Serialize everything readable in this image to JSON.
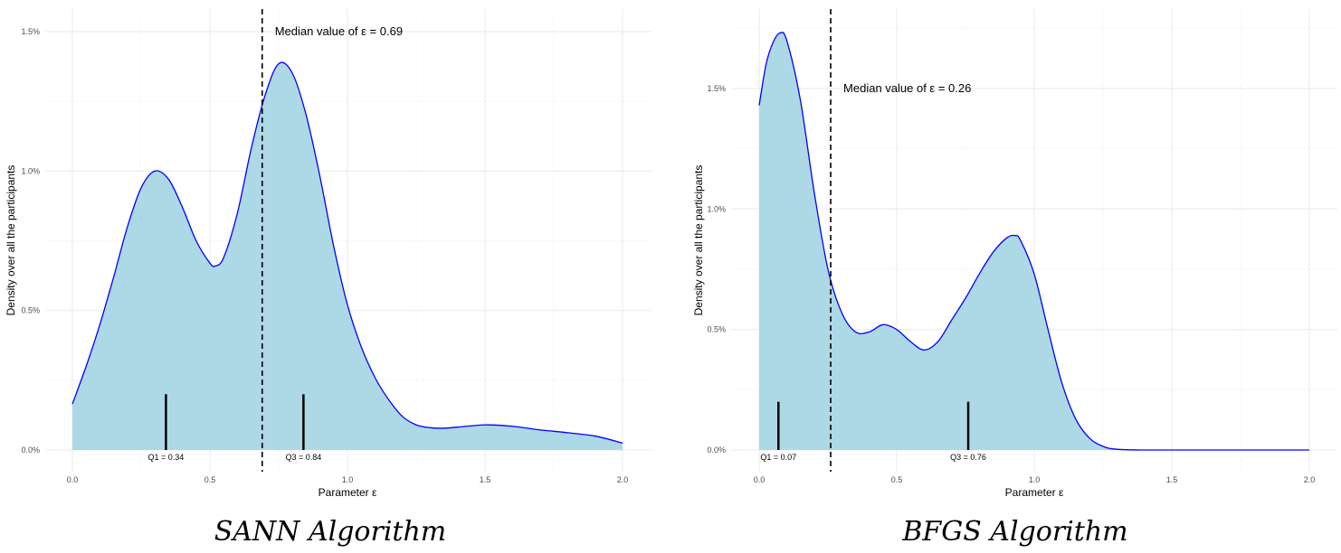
{
  "chart_data": [
    {
      "type": "area",
      "title": "SANN Algorithm",
      "xlabel": "Parameter ε",
      "ylabel": "Density over all the participants",
      "xlim": [
        0,
        2
      ],
      "ylim": [
        0,
        1.5
      ],
      "xticks": [
        "0.0",
        "0.5",
        "1.0",
        "1.5",
        "2.0"
      ],
      "xtick_values": [
        0,
        0.5,
        1,
        1.5,
        2
      ],
      "yticks": [
        "0.0%",
        "0.5%",
        "1.0%",
        "1.5%"
      ],
      "ytick_values": [
        0,
        0.5,
        1,
        1.5
      ],
      "grid": true,
      "fill_color": "#add8e6",
      "line_color": "#0000ff",
      "x": [
        0,
        0.05,
        0.1,
        0.15,
        0.2,
        0.25,
        0.3,
        0.35,
        0.4,
        0.45,
        0.5,
        0.52,
        0.55,
        0.6,
        0.65,
        0.7,
        0.75,
        0.8,
        0.85,
        0.9,
        0.95,
        1.0,
        1.05,
        1.1,
        1.15,
        1.2,
        1.25,
        1.3,
        1.35,
        1.4,
        1.5,
        1.6,
        1.7,
        1.8,
        1.9,
        2.0
      ],
      "y": [
        0.165,
        0.3,
        0.45,
        0.62,
        0.8,
        0.94,
        1.0,
        0.97,
        0.87,
        0.75,
        0.67,
        0.66,
        0.69,
        0.85,
        1.08,
        1.27,
        1.385,
        1.35,
        1.2,
        0.98,
        0.73,
        0.52,
        0.37,
        0.26,
        0.18,
        0.12,
        0.09,
        0.08,
        0.078,
        0.082,
        0.09,
        0.085,
        0.072,
        0.062,
        0.05,
        0.025
      ],
      "median": {
        "value": 0.69,
        "label": "Median value of ε = 0.69"
      },
      "q1": {
        "value": 0.34,
        "label": "Q1 = 0.34"
      },
      "q3": {
        "value": 0.84,
        "label": "Q3 = 0.84"
      },
      "quartile_mark_height": 0.2
    },
    {
      "type": "area",
      "title": "BFGS Algorithm",
      "xlabel": "Parameter ε",
      "ylabel": "Density over all the participants",
      "xlim": [
        0,
        2
      ],
      "ylim": [
        0,
        1.75
      ],
      "xticks": [
        "0.0",
        "0.5",
        "1.0",
        "1.5",
        "2.0"
      ],
      "xtick_values": [
        0,
        0.5,
        1,
        1.5,
        2
      ],
      "yticks": [
        "0.0%",
        "0.5%",
        "1.0%",
        "1.5%"
      ],
      "ytick_values": [
        0,
        0.5,
        1,
        1.5
      ],
      "grid": true,
      "fill_color": "#add8e6",
      "line_color": "#0000ff",
      "x": [
        0,
        0.025,
        0.05,
        0.075,
        0.1,
        0.15,
        0.2,
        0.25,
        0.3,
        0.35,
        0.4,
        0.45,
        0.5,
        0.55,
        0.6,
        0.65,
        0.7,
        0.75,
        0.8,
        0.85,
        0.9,
        0.93,
        0.95,
        1.0,
        1.05,
        1.1,
        1.15,
        1.2,
        1.25,
        1.3,
        1.4,
        1.6,
        1.8,
        2.0
      ],
      "y": [
        1.43,
        1.6,
        1.69,
        1.73,
        1.7,
        1.45,
        1.07,
        0.75,
        0.57,
        0.49,
        0.49,
        0.52,
        0.5,
        0.45,
        0.415,
        0.45,
        0.54,
        0.63,
        0.73,
        0.82,
        0.88,
        0.89,
        0.87,
        0.73,
        0.5,
        0.28,
        0.13,
        0.05,
        0.015,
        0.003,
        0,
        0,
        0,
        0
      ],
      "median": {
        "value": 0.26,
        "label": "Median value of ε = 0.26"
      },
      "q1": {
        "value": 0.07,
        "label": "Q1 = 0.07"
      },
      "q3": {
        "value": 0.76,
        "label": "Q3 = 0.76"
      },
      "quartile_mark_height": 0.2
    }
  ]
}
